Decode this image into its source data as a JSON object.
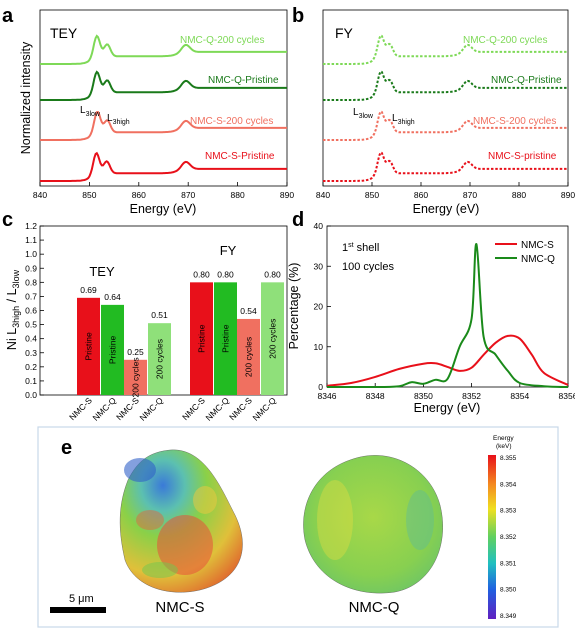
{
  "panels": {
    "a": {
      "letter": "a",
      "corner_label": "TEY",
      "x_ticks": [
        "840",
        "850",
        "860",
        "870",
        "880",
        "890"
      ],
      "x_label": "Energy (eV)",
      "y_label": "Normalized intensity",
      "traces": [
        {
          "label": "NMC-Q-200 cycles",
          "color": "#7ed957"
        },
        {
          "label": "NMC-Q-Pristine",
          "color": "#1a7a1a"
        },
        {
          "label": "NMC-S-200 cycles",
          "color": "#f07060"
        },
        {
          "label": "NMC-S-Pristine",
          "color": "#e8101a"
        }
      ],
      "ann_low": "L",
      "ann_low_sub": "3low",
      "ann_high": "L",
      "ann_high_sub": "3high"
    },
    "b": {
      "letter": "b",
      "corner_label": "FY",
      "x_ticks": [
        "840",
        "850",
        "860",
        "870",
        "880",
        "890"
      ],
      "x_label": "Energy (eV)",
      "traces": [
        {
          "label": "NMC-Q-200 cycles",
          "color": "#7ed957"
        },
        {
          "label": "NMC-Q-Pristine",
          "color": "#1a7a1a"
        },
        {
          "label": "NMC-S-200 cycles",
          "color": "#f07060"
        },
        {
          "label": "NMC-S-pristine",
          "color": "#e8101a"
        }
      ],
      "ann_low": "L",
      "ann_low_sub": "3low",
      "ann_high": "L",
      "ann_high_sub": "3high"
    },
    "c": {
      "letter": "c",
      "group_tey": "TEY",
      "group_fy": "FY",
      "y_ticks": [
        "0.0",
        "0.1",
        "0.2",
        "0.3",
        "0.4",
        "0.5",
        "0.6",
        "0.7",
        "0.8",
        "0.9",
        "1.0",
        "1.1",
        "1.2"
      ],
      "y_label_main": "Ni L",
      "y_label_sub1": "3high",
      "y_label_mid": " / L",
      "y_label_sub2": "3low"
    },
    "d": {
      "letter": "d",
      "annotation_line1_pre": "1",
      "annotation_line1_sup": "st",
      "annotation_line1_post": " shell",
      "annotation_line2": "100 cycles",
      "x_ticks": [
        "8346",
        "8348",
        "8350",
        "8352",
        "8354",
        "8356"
      ],
      "y_ticks": [
        "0",
        "10",
        "20",
        "30",
        "40"
      ],
      "x_label": "Energy (eV)",
      "y_label": "Percentage (%)"
    },
    "e": {
      "letter": "e",
      "label_s": "NMC-S",
      "label_q": "NMC-Q",
      "scale_bar": "5 μm",
      "colorbar_title_1": "Energy",
      "colorbar_title_2": "(keV)",
      "colorbar_ticks": [
        "8.355",
        "8.354",
        "8.353",
        "8.352",
        "8.351",
        "8.350",
        "8.349"
      ]
    }
  },
  "chart_data": [
    {
      "panel": "a",
      "type": "line",
      "xlabel": "Energy (eV)",
      "ylabel": "Normalized intensity",
      "xlim": [
        840,
        890
      ],
      "series": [
        {
          "name": "NMC-Q-200 cycles",
          "peaks_eV": [
            851.5,
            853.6,
            869.5
          ]
        },
        {
          "name": "NMC-Q-Pristine",
          "peaks_eV": [
            851.5,
            853.6,
            869.5
          ]
        },
        {
          "name": "NMC-S-200 cycles",
          "peaks_eV": [
            851.6,
            853.6,
            869.5
          ]
        },
        {
          "name": "NMC-S-Pristine",
          "peaks_eV": [
            851.4,
            853.5,
            869.5
          ]
        }
      ]
    },
    {
      "panel": "b",
      "type": "line",
      "xlabel": "Energy (eV)",
      "xlim": [
        840,
        890
      ],
      "series": [
        {
          "name": "NMC-Q-200 cycles",
          "peaks_eV": [
            851.8,
            853.6,
            869.5
          ]
        },
        {
          "name": "NMC-Q-Pristine",
          "peaks_eV": [
            851.8,
            853.6,
            869.5
          ]
        },
        {
          "name": "NMC-S-200 cycles",
          "peaks_eV": [
            851.8,
            853.6,
            869.5
          ]
        },
        {
          "name": "NMC-S-pristine",
          "peaks_eV": [
            851.8,
            853.6,
            869.5
          ]
        }
      ]
    },
    {
      "panel": "c",
      "type": "bar",
      "ylim": [
        0,
        1.2
      ],
      "bars": [
        {
          "group": "TEY",
          "category": "NMC-S",
          "in_bar": "Pristine",
          "value": 0.69,
          "label": "0.69",
          "color": "#e8101a"
        },
        {
          "group": "TEY",
          "category": "NMC-Q",
          "in_bar": "Pristine",
          "value": 0.64,
          "label": "0.64",
          "color": "#22bb22"
        },
        {
          "group": "TEY",
          "category": "NMC-S",
          "in_bar": "200 cycles",
          "value": 0.25,
          "label": "0.25",
          "color": "#f07060"
        },
        {
          "group": "TEY",
          "category": "NMC-Q",
          "in_bar": "200 cycles",
          "value": 0.51,
          "label": "0.51",
          "color": "#8fe07a"
        },
        {
          "group": "FY",
          "category": "NMC-S",
          "in_bar": "Pristine",
          "value": 0.8,
          "label": "0.80",
          "color": "#e8101a"
        },
        {
          "group": "FY",
          "category": "NMC-Q",
          "in_bar": "Pristine",
          "value": 0.8,
          "label": "0.80",
          "color": "#22bb22"
        },
        {
          "group": "FY",
          "category": "NMC-S",
          "in_bar": "200 cycles",
          "value": 0.54,
          "label": "0.54",
          "color": "#f07060"
        },
        {
          "group": "FY",
          "category": "NMC-Q",
          "in_bar": "200 cycles",
          "value": 0.8,
          "label": "0.80",
          "color": "#8fe07a"
        }
      ]
    },
    {
      "panel": "d",
      "type": "line",
      "xlabel": "Energy (eV)",
      "ylabel": "Percentage (%)",
      "xlim": [
        8346,
        8356
      ],
      "ylim": [
        0,
        40
      ],
      "series": [
        {
          "name": "NMC-S",
          "color": "#e8101a",
          "x": [
            8346,
            8347,
            8348,
            8349,
            8350,
            8350.5,
            8351,
            8351.5,
            8352,
            8352.5,
            8353,
            8353.5,
            8354,
            8354.5,
            8355,
            8356
          ],
          "y": [
            0.3,
            1.0,
            2.5,
            4.5,
            5.8,
            5.9,
            5.0,
            4.0,
            4.8,
            8.0,
            11.0,
            12.7,
            12.0,
            8.0,
            3.5,
            0.5
          ]
        },
        {
          "name": "NMC-Q",
          "color": "#1a8a1a",
          "x": [
            8346,
            8347,
            8348,
            8349,
            8349.5,
            8350,
            8350.5,
            8351,
            8351.5,
            8352,
            8352.2,
            8352.5,
            8353,
            8353.5,
            8354,
            8355,
            8356
          ],
          "y": [
            0,
            0,
            0,
            0.2,
            1.2,
            0.8,
            1.8,
            2.0,
            10.0,
            17.0,
            35.5,
            12.5,
            8.0,
            4.0,
            1.0,
            0.2,
            0
          ]
        }
      ]
    }
  ]
}
